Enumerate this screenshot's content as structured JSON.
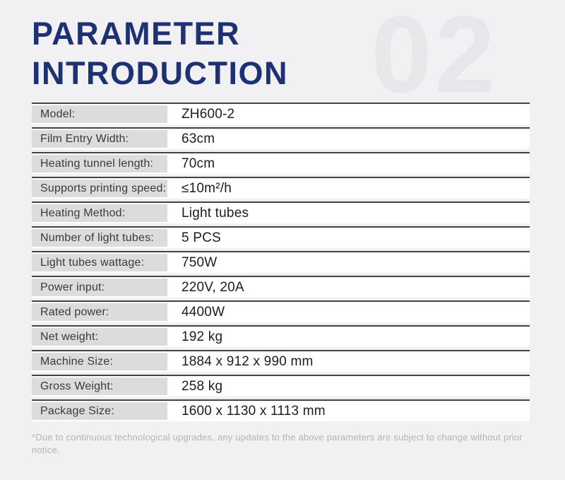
{
  "page": {
    "background_color": "#f1f0f3",
    "accent_color": "#1e3273",
    "section_number": "02"
  },
  "header": {
    "title_line1": "PARAMETER",
    "title_line2": "INTRODUCTION"
  },
  "table": {
    "rows": [
      {
        "label": "Model:",
        "value": "ZH600-2"
      },
      {
        "label": "Film Entry Width:",
        "value": "63cm"
      },
      {
        "label": "Heating tunnel length:",
        "value": "70cm"
      },
      {
        "label": "Supports printing speed:",
        "value": "≤10m²/h"
      },
      {
        "label": "Heating Method:",
        "value": "Light tubes"
      },
      {
        "label": "Number of light tubes:",
        "value": "5 PCS"
      },
      {
        "label": "Light tubes wattage:",
        "value": "750W"
      },
      {
        "label": "Power input:",
        "value": "220V, 20A"
      },
      {
        "label": "Rated power:",
        "value": "4400W"
      },
      {
        "label": "Net weight:",
        "value": "192 kg"
      },
      {
        "label": "Machine Size:",
        "value": "1884 x 912 x 990 mm"
      },
      {
        "label": "Gross Weight:",
        "value": "258 kg"
      },
      {
        "label": "Package Size:",
        "value": "1600 x 1130 x 1113 mm"
      }
    ]
  },
  "footer": {
    "note": "*Due to continuous technological upgrades, any updates to the above parameters are subject to change without prior notice."
  }
}
